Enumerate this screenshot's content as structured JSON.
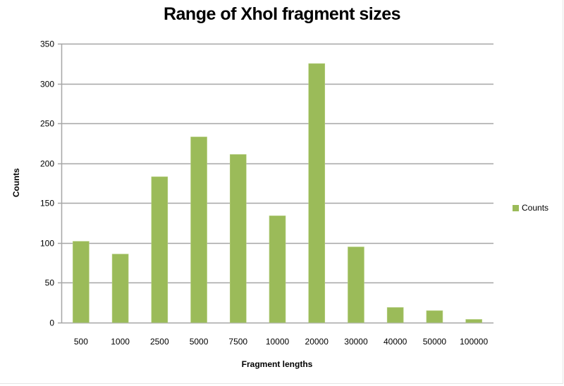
{
  "chart_data": {
    "type": "bar",
    "title": "Range of XhoI fragment sizes",
    "xlabel": "Fragment lengths",
    "ylabel": "Counts",
    "categories": [
      "500",
      "1000",
      "2500",
      "5000",
      "7500",
      "10000",
      "20000",
      "30000",
      "40000",
      "50000",
      "100000"
    ],
    "series": [
      {
        "name": "Counts",
        "values": [
          102,
          86,
          183,
          233,
          211,
          134,
          325,
          95,
          19,
          15,
          4
        ],
        "color": "#9bbb59"
      }
    ],
    "ylim": [
      0,
      350
    ],
    "yticks": [
      0,
      50,
      100,
      150,
      200,
      250,
      300,
      350
    ],
    "grid": true,
    "legend_position": "right"
  },
  "colors": {
    "bar": "#9bbb59",
    "gridline": "#a6a6a6",
    "axis": "#a6a6a6"
  }
}
